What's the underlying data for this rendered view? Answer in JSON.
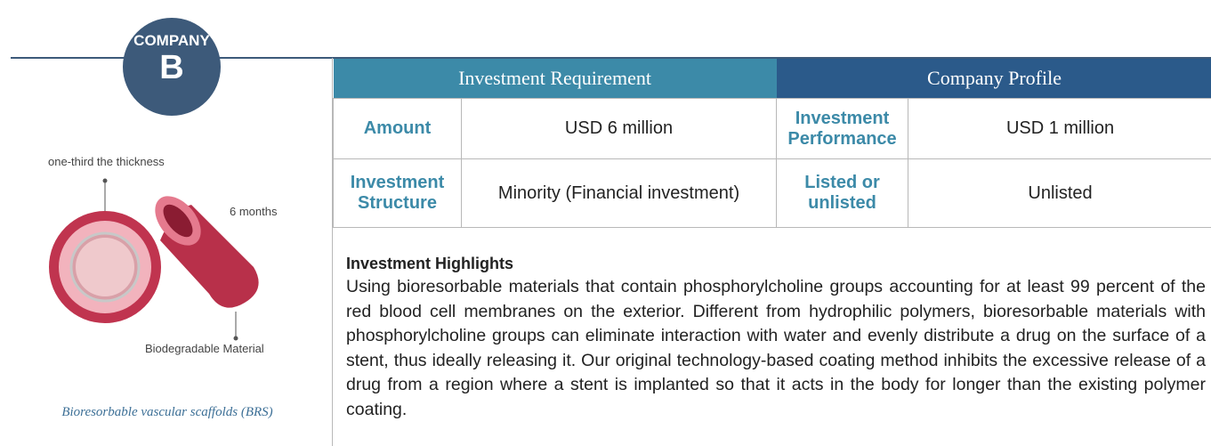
{
  "badge": {
    "line1": "COMPANY",
    "line2": "B"
  },
  "illustration": {
    "labels": [
      "one-third the thickness",
      "6 months",
      "Biodegradable Material"
    ],
    "caption": "Bioresorbable vascular scaffolds (BRS)"
  },
  "table": {
    "headers": [
      "Investment Requirement",
      "Company Profile"
    ],
    "rows": [
      [
        "Amount",
        "USD 6 million",
        "Investment Performance",
        "USD 1 million"
      ],
      [
        "Investment Structure",
        "Minority (Financial investment)",
        "Listed or unlisted",
        "Unlisted"
      ]
    ]
  },
  "highlights": {
    "title": "Investment Highlights",
    "text": "Using bioresorbable materials that contain phosphorylcholine groups accounting for at least 99 percent of the red blood cell membranes on the exterior. Different from hydrophilic polymers, bioresorbable materials with phosphorylcholine groups can eliminate interaction with water and evenly distribute a drug on the surface of a stent, thus ideally releasing it. Our original technology-based coating method inhibits the excessive release of a drug from a region where a stent is implanted so that it acts in the body for longer than the existing polymer coating."
  }
}
